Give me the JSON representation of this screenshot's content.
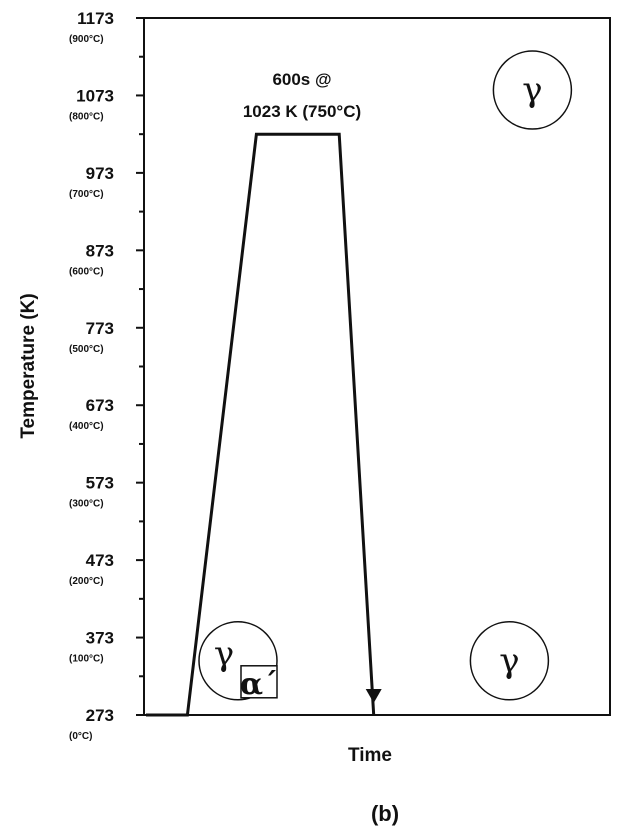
{
  "chart_data": {
    "type": "line",
    "title": "",
    "xlabel": "Time",
    "ylabel": "Temperature (K)",
    "ylim": [
      273,
      1173
    ],
    "y_ticks": [
      {
        "k": "1173",
        "c": "(900°C)",
        "value": 1173
      },
      {
        "k": "1073",
        "c": "(800°C)",
        "value": 1073
      },
      {
        "k": "973",
        "c": "(700°C)",
        "value": 973
      },
      {
        "k": "873",
        "c": "(600°C)",
        "value": 873
      },
      {
        "k": "773",
        "c": "(500°C)",
        "value": 773
      },
      {
        "k": "673",
        "c": "(400°C)",
        "value": 673
      },
      {
        "k": "573",
        "c": "(300°C)",
        "value": 573
      },
      {
        "k": "473",
        "c": "(200°C)",
        "value": 473
      },
      {
        "k": "373",
        "c": "(100°C)",
        "value": 373
      },
      {
        "k": "273",
        "c": "(0°C)",
        "value": 273
      }
    ],
    "minor_tick_step": 50,
    "xlim": [
      0,
      100
    ],
    "series": [
      {
        "points": [
          {
            "x": 0,
            "y": 273
          },
          {
            "x": 9,
            "y": 273
          },
          {
            "x": 24,
            "y": 1023
          },
          {
            "x": 42,
            "y": 1023
          },
          {
            "x": 49.5,
            "y": 273
          }
        ],
        "end_arrow": true
      }
    ],
    "annotations": {
      "hold_line1": "600s @",
      "hold_line2": "1023 K (750°C)",
      "phase_gamma": "γ",
      "phase_alpha_prime": "α´"
    },
    "phase_circles": [
      {
        "label": "γ",
        "x": 84,
        "y": 1080,
        "with_alpha": false
      },
      {
        "label": "γ",
        "x": 20,
        "y": 343,
        "with_alpha": true
      },
      {
        "label": "γ",
        "x": 79,
        "y": 343,
        "with_alpha": false
      }
    ]
  },
  "figure_label": "(b)"
}
